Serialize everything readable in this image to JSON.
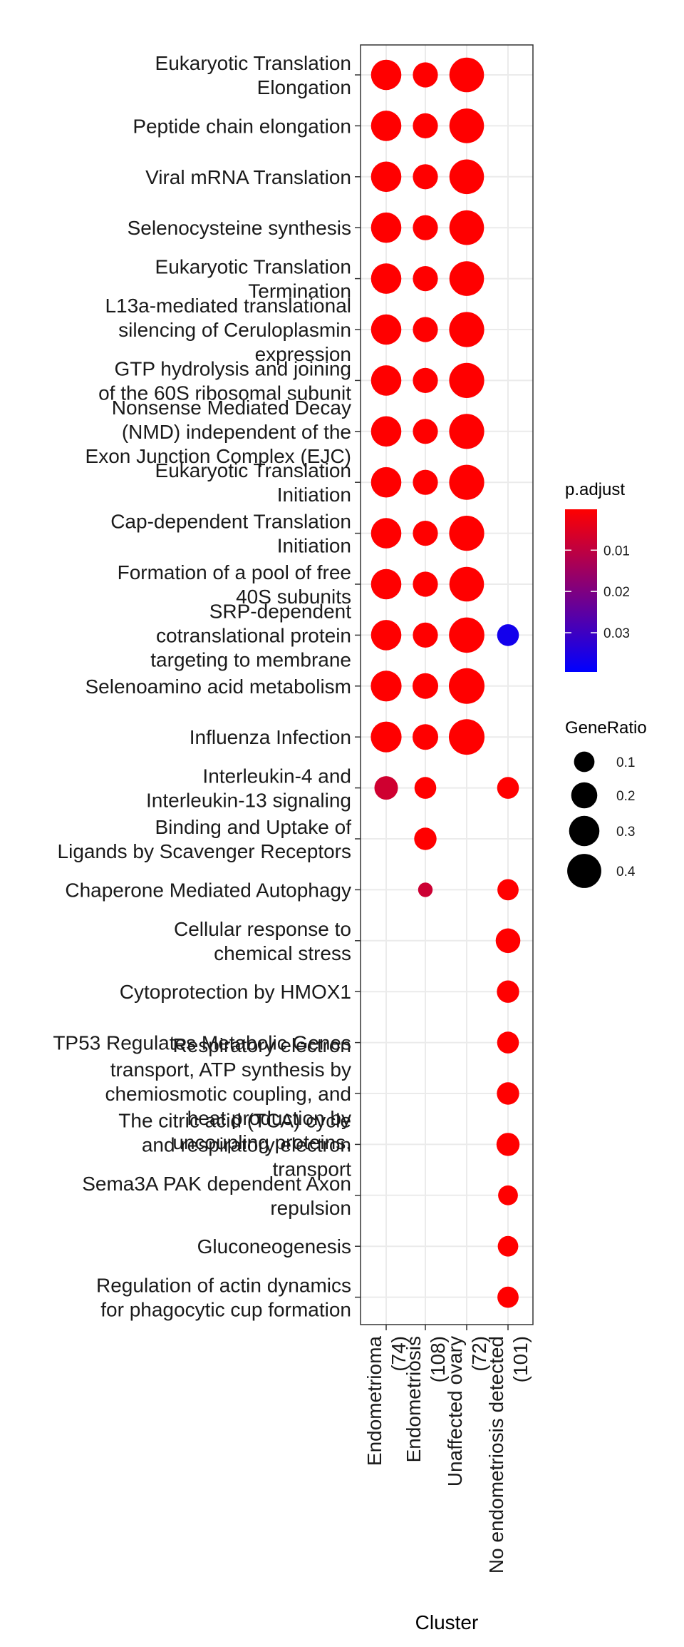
{
  "chart_data": {
    "type": "scatter",
    "xlabel": "Cluster",
    "ylabel": "",
    "clusters": [
      {
        "lines": [
          "Endometrioma",
          "(74)"
        ]
      },
      {
        "lines": [
          "Endometriosis",
          "(108)"
        ]
      },
      {
        "lines": [
          "Unaffected ovary",
          "(72)"
        ]
      },
      {
        "lines": [
          "No endometriosis detected",
          "(101)"
        ]
      }
    ],
    "terms": [
      {
        "lines": [
          "Eukaryotic Translation",
          "Elongation"
        ]
      },
      {
        "lines": [
          "Peptide chain elongation"
        ]
      },
      {
        "lines": [
          "Viral mRNA Translation"
        ]
      },
      {
        "lines": [
          "Selenocysteine synthesis"
        ]
      },
      {
        "lines": [
          "Eukaryotic Translation",
          "Termination"
        ]
      },
      {
        "lines": [
          "L13a-mediated translational",
          "silencing of Ceruloplasmin",
          "expression"
        ]
      },
      {
        "lines": [
          "GTP hydrolysis and joining",
          "of the 60S ribosomal subunit"
        ]
      },
      {
        "lines": [
          "Nonsense Mediated Decay",
          "(NMD) independent of the",
          "Exon Junction Complex (EJC)"
        ]
      },
      {
        "lines": [
          "Eukaryotic Translation",
          "Initiation"
        ]
      },
      {
        "lines": [
          "Cap-dependent Translation",
          "Initiation"
        ]
      },
      {
        "lines": [
          "Formation of a pool of free",
          "40S subunits"
        ]
      },
      {
        "lines": [
          "SRP-dependent",
          "cotranslational protein",
          "targeting to membrane"
        ]
      },
      {
        "lines": [
          "Selenoamino acid metabolism"
        ]
      },
      {
        "lines": [
          "Influenza Infection"
        ]
      },
      {
        "lines": [
          "Interleukin-4 and",
          "Interleukin-13 signaling"
        ]
      },
      {
        "lines": [
          "Binding and Uptake of",
          "Ligands by Scavenger Receptors"
        ]
      },
      {
        "lines": [
          "Chaperone Mediated Autophagy"
        ]
      },
      {
        "lines": [
          "Cellular response to",
          "chemical stress"
        ]
      },
      {
        "lines": [
          "Cytoprotection by HMOX1"
        ]
      },
      {
        "lines": [
          "TP53 Regulates Metabolic Genes"
        ]
      },
      {
        "lines": [
          "Respiratory electron",
          "transport, ATP synthesis by",
          "chemiosmotic coupling, and",
          "heat production by",
          "uncoupling proteins."
        ]
      },
      {
        "lines": [
          "The citric acid (TCA) cycle",
          "and respiratory electron",
          "transport"
        ]
      },
      {
        "lines": [
          "Sema3A PAK dependent Axon",
          "repulsion"
        ]
      },
      {
        "lines": [
          "Gluconeogenesis"
        ]
      },
      {
        "lines": [
          "Regulation of actin dynamics",
          "for phagocytic cup formation"
        ]
      }
    ],
    "points": [
      {
        "term": 0,
        "cluster": 0,
        "gene_ratio": 0.3,
        "p_adjust": 0.0001
      },
      {
        "term": 0,
        "cluster": 1,
        "gene_ratio": 0.18,
        "p_adjust": 0.0001
      },
      {
        "term": 0,
        "cluster": 2,
        "gene_ratio": 0.42,
        "p_adjust": 0.0001
      },
      {
        "term": 1,
        "cluster": 0,
        "gene_ratio": 0.3,
        "p_adjust": 0.0001
      },
      {
        "term": 1,
        "cluster": 1,
        "gene_ratio": 0.18,
        "p_adjust": 0.0001
      },
      {
        "term": 1,
        "cluster": 2,
        "gene_ratio": 0.42,
        "p_adjust": 0.0001
      },
      {
        "term": 2,
        "cluster": 0,
        "gene_ratio": 0.3,
        "p_adjust": 0.0001
      },
      {
        "term": 2,
        "cluster": 1,
        "gene_ratio": 0.18,
        "p_adjust": 0.0001
      },
      {
        "term": 2,
        "cluster": 2,
        "gene_ratio": 0.42,
        "p_adjust": 0.0001
      },
      {
        "term": 3,
        "cluster": 0,
        "gene_ratio": 0.3,
        "p_adjust": 0.0001
      },
      {
        "term": 3,
        "cluster": 1,
        "gene_ratio": 0.18,
        "p_adjust": 0.0001
      },
      {
        "term": 3,
        "cluster": 2,
        "gene_ratio": 0.42,
        "p_adjust": 0.0001
      },
      {
        "term": 4,
        "cluster": 0,
        "gene_ratio": 0.3,
        "p_adjust": 0.0001
      },
      {
        "term": 4,
        "cluster": 1,
        "gene_ratio": 0.18,
        "p_adjust": 0.0001
      },
      {
        "term": 4,
        "cluster": 2,
        "gene_ratio": 0.42,
        "p_adjust": 0.0001
      },
      {
        "term": 5,
        "cluster": 0,
        "gene_ratio": 0.3,
        "p_adjust": 0.0001
      },
      {
        "term": 5,
        "cluster": 1,
        "gene_ratio": 0.18,
        "p_adjust": 0.0001
      },
      {
        "term": 5,
        "cluster": 2,
        "gene_ratio": 0.43,
        "p_adjust": 0.0001
      },
      {
        "term": 6,
        "cluster": 0,
        "gene_ratio": 0.3,
        "p_adjust": 0.0001
      },
      {
        "term": 6,
        "cluster": 1,
        "gene_ratio": 0.18,
        "p_adjust": 0.0001
      },
      {
        "term": 6,
        "cluster": 2,
        "gene_ratio": 0.43,
        "p_adjust": 0.0001
      },
      {
        "term": 7,
        "cluster": 0,
        "gene_ratio": 0.3,
        "p_adjust": 0.0001
      },
      {
        "term": 7,
        "cluster": 1,
        "gene_ratio": 0.18,
        "p_adjust": 0.0001
      },
      {
        "term": 7,
        "cluster": 2,
        "gene_ratio": 0.43,
        "p_adjust": 0.0001
      },
      {
        "term": 8,
        "cluster": 0,
        "gene_ratio": 0.3,
        "p_adjust": 0.0001
      },
      {
        "term": 8,
        "cluster": 1,
        "gene_ratio": 0.18,
        "p_adjust": 0.0001
      },
      {
        "term": 8,
        "cluster": 2,
        "gene_ratio": 0.43,
        "p_adjust": 0.0001
      },
      {
        "term": 9,
        "cluster": 0,
        "gene_ratio": 0.3,
        "p_adjust": 0.0001
      },
      {
        "term": 9,
        "cluster": 1,
        "gene_ratio": 0.18,
        "p_adjust": 0.0001
      },
      {
        "term": 9,
        "cluster": 2,
        "gene_ratio": 0.43,
        "p_adjust": 0.0001
      },
      {
        "term": 10,
        "cluster": 0,
        "gene_ratio": 0.3,
        "p_adjust": 0.0001
      },
      {
        "term": 10,
        "cluster": 1,
        "gene_ratio": 0.18,
        "p_adjust": 0.0001
      },
      {
        "term": 10,
        "cluster": 2,
        "gene_ratio": 0.42,
        "p_adjust": 0.0001
      },
      {
        "term": 11,
        "cluster": 0,
        "gene_ratio": 0.3,
        "p_adjust": 0.0001
      },
      {
        "term": 11,
        "cluster": 1,
        "gene_ratio": 0.18,
        "p_adjust": 0.0001
      },
      {
        "term": 11,
        "cluster": 2,
        "gene_ratio": 0.44,
        "p_adjust": 0.0001
      },
      {
        "term": 11,
        "cluster": 3,
        "gene_ratio": 0.12,
        "p_adjust": 0.0365
      },
      {
        "term": 12,
        "cluster": 0,
        "gene_ratio": 0.31,
        "p_adjust": 0.0001
      },
      {
        "term": 12,
        "cluster": 1,
        "gene_ratio": 0.19,
        "p_adjust": 0.0001
      },
      {
        "term": 12,
        "cluster": 2,
        "gene_ratio": 0.45,
        "p_adjust": 0.0001
      },
      {
        "term": 13,
        "cluster": 0,
        "gene_ratio": 0.31,
        "p_adjust": 0.0001
      },
      {
        "term": 13,
        "cluster": 1,
        "gene_ratio": 0.19,
        "p_adjust": 0.0001
      },
      {
        "term": 13,
        "cluster": 2,
        "gene_ratio": 0.45,
        "p_adjust": 0.0001
      },
      {
        "term": 14,
        "cluster": 0,
        "gene_ratio": 0.15,
        "p_adjust": 0.0075
      },
      {
        "term": 14,
        "cluster": 1,
        "gene_ratio": 0.12,
        "p_adjust": 0.0001
      },
      {
        "term": 14,
        "cluster": 3,
        "gene_ratio": 0.12,
        "p_adjust": 0.0001
      },
      {
        "term": 15,
        "cluster": 1,
        "gene_ratio": 0.13,
        "p_adjust": 0.0001
      },
      {
        "term": 16,
        "cluster": 1,
        "gene_ratio": 0.03,
        "p_adjust": 0.008
      },
      {
        "term": 16,
        "cluster": 3,
        "gene_ratio": 0.11,
        "p_adjust": 0.0001
      },
      {
        "term": 17,
        "cluster": 3,
        "gene_ratio": 0.17,
        "p_adjust": 0.0001
      },
      {
        "term": 18,
        "cluster": 3,
        "gene_ratio": 0.13,
        "p_adjust": 0.0001
      },
      {
        "term": 19,
        "cluster": 3,
        "gene_ratio": 0.12,
        "p_adjust": 0.0001
      },
      {
        "term": 20,
        "cluster": 3,
        "gene_ratio": 0.13,
        "p_adjust": 0.0001
      },
      {
        "term": 21,
        "cluster": 3,
        "gene_ratio": 0.14,
        "p_adjust": 0.0001
      },
      {
        "term": 22,
        "cluster": 3,
        "gene_ratio": 0.09,
        "p_adjust": 0.0001
      },
      {
        "term": 23,
        "cluster": 3,
        "gene_ratio": 0.1,
        "p_adjust": 0.0001
      },
      {
        "term": 24,
        "cluster": 3,
        "gene_ratio": 0.11,
        "p_adjust": 0.0001
      }
    ],
    "color_legend": {
      "title": "p.adjust",
      "ticks": [
        0.01,
        0.02,
        0.03
      ],
      "tick_labels": [
        "0.01",
        "0.02",
        "0.03"
      ],
      "range": [
        0.0001,
        0.0395
      ],
      "low_color": "#FF0000",
      "high_color": "#0000FF"
    },
    "size_legend": {
      "title": "GeneRatio",
      "values": [
        0.1,
        0.2,
        0.3,
        0.4
      ],
      "labels": [
        "0.1",
        "0.2",
        "0.3",
        "0.4"
      ]
    },
    "grid": true,
    "panel_border": true
  }
}
